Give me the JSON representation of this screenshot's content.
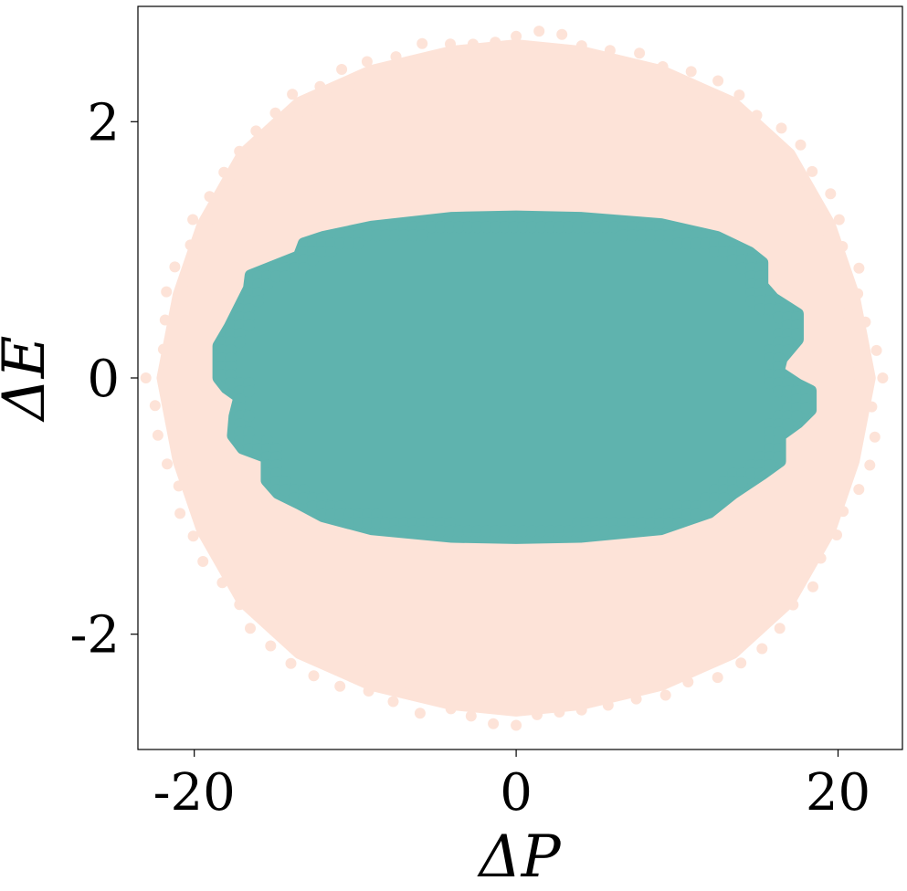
{
  "chart_data": {
    "type": "scatter",
    "title": "",
    "xlabel": "ΔP",
    "ylabel": "ΔE",
    "xlim": [
      -23.5,
      24.0
    ],
    "ylim": [
      -2.9,
      2.9
    ],
    "xticks": [
      -20,
      0,
      20
    ],
    "xtick_labels": [
      "-20",
      "0",
      "20"
    ],
    "yticks": [
      -2,
      0,
      2
    ],
    "ytick_labels": [
      "-2",
      "0",
      "2"
    ],
    "grid": false,
    "legend": "none",
    "series": [
      {
        "color": "#fde3d8",
        "marker": "circle",
        "description_points": "dense cloud; outline in data units",
        "outline": [
          [
            -22.0,
            0.0
          ],
          [
            -21.0,
            0.65
          ],
          [
            -19.5,
            1.2
          ],
          [
            -17.0,
            1.75
          ],
          [
            -13.5,
            2.15
          ],
          [
            -9.0,
            2.4
          ],
          [
            -4.0,
            2.55
          ],
          [
            0.0,
            2.6
          ],
          [
            4.0,
            2.55
          ],
          [
            9.0,
            2.4
          ],
          [
            13.5,
            2.15
          ],
          [
            17.0,
            1.75
          ],
          [
            19.5,
            1.2
          ],
          [
            21.0,
            0.65
          ],
          [
            22.0,
            0.0
          ],
          [
            21.0,
            -0.65
          ],
          [
            19.5,
            -1.2
          ],
          [
            17.0,
            -1.75
          ],
          [
            13.5,
            -2.15
          ],
          [
            9.0,
            -2.4
          ],
          [
            4.0,
            -2.55
          ],
          [
            0.0,
            -2.6
          ],
          [
            -4.0,
            -2.55
          ],
          [
            -9.0,
            -2.4
          ],
          [
            -13.5,
            -2.15
          ],
          [
            -17.0,
            -1.75
          ],
          [
            -19.5,
            -1.2
          ],
          [
            -21.0,
            -0.65
          ]
        ]
      },
      {
        "color": "#5fb3ae",
        "marker": "circle",
        "outline": [
          [
            -18.5,
            0.0
          ],
          [
            -18.5,
            0.25
          ],
          [
            -17.8,
            0.4
          ],
          [
            -17.2,
            0.55
          ],
          [
            -16.6,
            0.7
          ],
          [
            -16.5,
            0.8
          ],
          [
            -15.5,
            0.85
          ],
          [
            -13.5,
            0.95
          ],
          [
            -13.2,
            1.05
          ],
          [
            -12.0,
            1.1
          ],
          [
            -9.0,
            1.18
          ],
          [
            -4.0,
            1.25
          ],
          [
            0.0,
            1.26
          ],
          [
            4.0,
            1.25
          ],
          [
            9.0,
            1.2
          ],
          [
            12.5,
            1.1
          ],
          [
            14.5,
            0.98
          ],
          [
            15.3,
            0.9
          ],
          [
            15.3,
            0.72
          ],
          [
            16.0,
            0.62
          ],
          [
            17.5,
            0.5
          ],
          [
            17.5,
            0.3
          ],
          [
            16.5,
            0.15
          ],
          [
            16.3,
            0.05
          ],
          [
            17.5,
            -0.05
          ],
          [
            18.3,
            -0.1
          ],
          [
            18.3,
            -0.25
          ],
          [
            17.5,
            -0.35
          ],
          [
            16.4,
            -0.45
          ],
          [
            16.4,
            -0.65
          ],
          [
            15.3,
            -0.75
          ],
          [
            13.5,
            -0.9
          ],
          [
            12.0,
            -1.05
          ],
          [
            9.0,
            -1.18
          ],
          [
            4.0,
            -1.24
          ],
          [
            0.0,
            -1.25
          ],
          [
            -4.0,
            -1.24
          ],
          [
            -9.0,
            -1.18
          ],
          [
            -12.0,
            -1.08
          ],
          [
            -13.5,
            -0.98
          ],
          [
            -14.8,
            -0.9
          ],
          [
            -15.5,
            -0.8
          ],
          [
            -15.5,
            -0.62
          ],
          [
            -17.0,
            -0.55
          ],
          [
            -17.6,
            -0.45
          ],
          [
            -17.5,
            -0.3
          ],
          [
            -17.2,
            -0.15
          ],
          [
            -18.0,
            -0.08
          ]
        ]
      }
    ]
  }
}
